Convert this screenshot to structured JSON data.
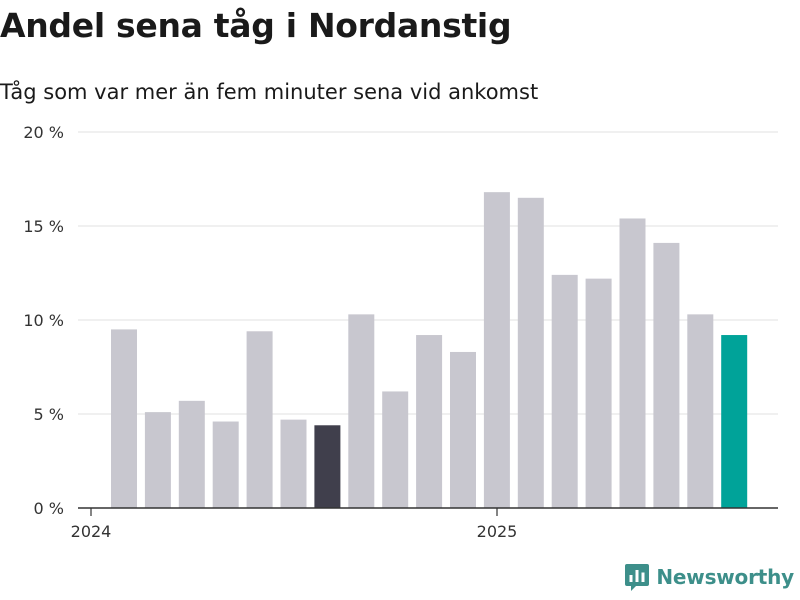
{
  "title": "Andel sena tåg i Nordanstig",
  "subtitle": "Tåg som var mer än fem minuter sena vid ankomst",
  "brand": {
    "name": "Newsworthy",
    "icon": "newsworthy-logo-icon",
    "color": "#3d8f8a"
  },
  "colors": {
    "default": "#c8c7cf",
    "highlight_dark": "#403f4c",
    "highlight_latest": "#00a399",
    "grid": "#e0e0e0",
    "axis": "#333333"
  },
  "chart_data": {
    "type": "bar",
    "title": "Andel sena tåg i Nordanstig",
    "subtitle": "Tåg som var mer än fem minuter sena vid ankomst",
    "x_tick_labels": [
      "2024",
      "2025"
    ],
    "y_tick_labels": [
      "0 %",
      "5 %",
      "10 %",
      "15 %",
      "20 %"
    ],
    "y_ticks": [
      0,
      5,
      10,
      15,
      20
    ],
    "ylim": [
      0,
      20
    ],
    "grid": true,
    "values": [
      9.5,
      5.1,
      5.7,
      4.6,
      9.4,
      4.7,
      4.4,
      10.3,
      6.2,
      9.2,
      8.3,
      16.8,
      16.5,
      12.4,
      12.2,
      15.4,
      14.1,
      10.3,
      9.2
    ],
    "highlight": {
      "dark": [
        6
      ],
      "latest": [
        18
      ]
    }
  }
}
